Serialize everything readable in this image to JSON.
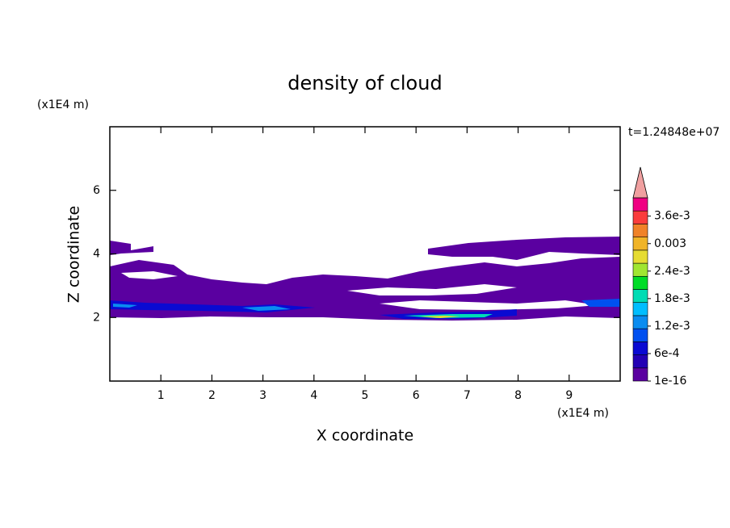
{
  "chart_data": {
    "type": "contour",
    "title": "density of cloud",
    "x_label": "X coordinate",
    "y_label": "Z coordinate",
    "x_unit": "(x1E4 m)",
    "y_unit": "(x1E4 m)",
    "annotation": "t=1.24848e+07",
    "xlim": [
      0,
      10
    ],
    "xticks": [
      1,
      2,
      3,
      4,
      5,
      6,
      7,
      8,
      9
    ],
    "ylim": [
      0,
      8
    ],
    "yticks": [
      2,
      4,
      6
    ],
    "colorbar": {
      "clim": [
        0,
        0.004
      ],
      "colors": [
        "#5a00a0",
        "#2300b4",
        "#0a0ad2",
        "#0050f0",
        "#0a8cf0",
        "#00beff",
        "#00dcb4",
        "#00dc28",
        "#a0e632",
        "#e6dc32",
        "#f0b428",
        "#f08228",
        "#fa3c3c",
        "#f00082"
      ],
      "over_color": "#f0a0a0",
      "ticks": [
        {
          "value": 1e-16,
          "label": "1e-16"
        },
        {
          "value": 0.0006,
          "label": "6e-4"
        },
        {
          "value": 0.0012,
          "label": "1.2e-3"
        },
        {
          "value": 0.0018,
          "label": "1.8e-3"
        },
        {
          "value": 0.0024,
          "label": "2.4e-3"
        },
        0.003,
        {
          "value": 0.0036,
          "label": "3.6e-3"
        }
      ]
    }
  }
}
